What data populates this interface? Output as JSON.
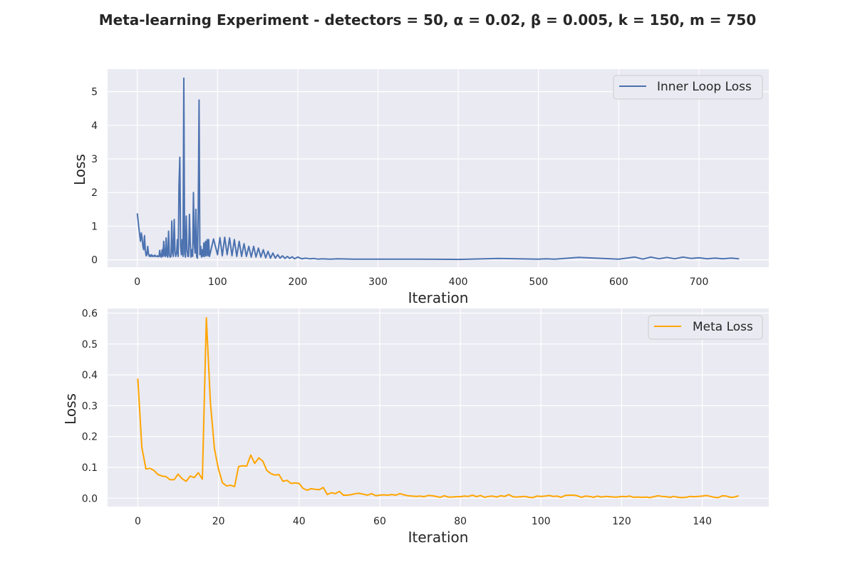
{
  "figure": {
    "title": "Meta-learning Experiment - detectors = 50, α = 0.02, β = 0.005, k = 150, m = 750"
  },
  "chart_data": [
    {
      "type": "line",
      "series": [
        {
          "name": "Inner Loop Loss",
          "color": "#4c72b0",
          "x": [
            0,
            2,
            3,
            4,
            5,
            6,
            7,
            8,
            9,
            10,
            11,
            12,
            13,
            14,
            15,
            16,
            17,
            18,
            19,
            20,
            21,
            22,
            23,
            24,
            25,
            26,
            27,
            28,
            29,
            30,
            31,
            32,
            33,
            34,
            35,
            36,
            37,
            38,
            39,
            40,
            41,
            42,
            43,
            44,
            45,
            46,
            47,
            48,
            49,
            50,
            51,
            52,
            53,
            54,
            55,
            56,
            57,
            58,
            59,
            60,
            61,
            62,
            63,
            64,
            65,
            66,
            67,
            68,
            69,
            70,
            71,
            72,
            73,
            74,
            75,
            76,
            77,
            78,
            79,
            80,
            81,
            82,
            83,
            84,
            85,
            86,
            87,
            88,
            89,
            90,
            95,
            100,
            103,
            106,
            109,
            112,
            115,
            118,
            121,
            124,
            127,
            130,
            133,
            136,
            139,
            142,
            145,
            148,
            151,
            154,
            157,
            160,
            163,
            166,
            169,
            172,
            175,
            178,
            181,
            184,
            187,
            190,
            193,
            196,
            200,
            205,
            210,
            215,
            220,
            225,
            230,
            240,
            250,
            270,
            300,
            320,
            350,
            400,
            450,
            500,
            510,
            520,
            550,
            600,
            620,
            630,
            640,
            650,
            660,
            670,
            680,
            690,
            700,
            710,
            720,
            730,
            740,
            750
          ],
          "y": [
            1.38,
            0.95,
            0.75,
            0.55,
            0.8,
            0.65,
            0.4,
            0.3,
            0.72,
            0.3,
            0.12,
            0.15,
            0.4,
            0.18,
            0.1,
            0.14,
            0.1,
            0.15,
            0.1,
            0.12,
            0.1,
            0.14,
            0.1,
            0.1,
            0.12,
            0.09,
            0.1,
            0.28,
            0.1,
            0.08,
            0.3,
            0.1,
            0.55,
            0.12,
            0.1,
            0.65,
            0.12,
            0.08,
            0.85,
            0.15,
            0.08,
            0.1,
            1.15,
            0.2,
            0.1,
            1.2,
            0.25,
            0.1,
            0.2,
            0.6,
            0.1,
            2.2,
            3.05,
            0.4,
            0.15,
            0.6,
            0.1,
            5.4,
            0.2,
            0.08,
            1.3,
            0.3,
            0.1,
            0.1,
            1.35,
            0.5,
            0.08,
            0.3,
            0.1,
            2.0,
            0.5,
            0.2,
            1.5,
            0.1,
            0.05,
            1.6,
            4.75,
            0.15,
            0.4,
            0.08,
            0.3,
            0.1,
            0.5,
            0.1,
            0.55,
            0.12,
            0.6,
            0.12,
            0.6,
            0.1,
            0.62,
            0.15,
            0.66,
            0.12,
            0.67,
            0.15,
            0.65,
            0.12,
            0.6,
            0.1,
            0.55,
            0.1,
            0.48,
            0.1,
            0.4,
            0.08,
            0.4,
            0.08,
            0.35,
            0.08,
            0.3,
            0.06,
            0.25,
            0.05,
            0.2,
            0.05,
            0.15,
            0.05,
            0.12,
            0.04,
            0.1,
            0.04,
            0.09,
            0.03,
            0.08,
            0.03,
            0.05,
            0.03,
            0.04,
            0.02,
            0.03,
            0.02,
            0.03,
            0.02,
            0.02,
            0.02,
            0.02,
            0.01,
            0.04,
            0.02,
            0.03,
            0.02,
            0.07,
            0.02,
            0.08,
            0.02,
            0.08,
            0.03,
            0.07,
            0.03,
            0.08,
            0.04,
            0.06,
            0.03,
            0.05,
            0.03,
            0.05,
            0.03
          ]
        }
      ],
      "xlabel": "Iteration",
      "ylabel": "Loss",
      "xlim": [
        -37,
        787
      ],
      "ylim": [
        -0.22,
        5.67
      ],
      "xticks": [
        0,
        100,
        200,
        300,
        400,
        500,
        600,
        700
      ],
      "yticks": [
        0,
        1,
        2,
        3,
        4,
        5
      ],
      "grid": true,
      "legend": "top-right"
    },
    {
      "type": "line",
      "series": [
        {
          "name": "Meta Loss",
          "color": "#ffa500",
          "x": [
            0,
            1,
            2,
            3,
            4,
            5,
            6,
            7,
            8,
            9,
            10,
            11,
            12,
            13,
            14,
            15,
            16,
            17,
            18,
            19,
            20,
            21,
            22,
            23,
            24,
            25,
            26,
            27,
            28,
            29,
            30,
            31,
            32,
            33,
            34,
            35,
            36,
            37,
            38,
            39,
            40,
            41,
            42,
            43,
            44,
            45,
            46,
            47,
            48,
            49,
            50,
            51,
            52,
            53,
            54,
            55,
            56,
            57,
            58,
            59,
            60,
            61,
            62,
            63,
            64,
            65,
            66,
            67,
            68,
            69,
            70,
            71,
            72,
            73,
            74,
            75,
            76,
            77,
            78,
            79,
            80,
            81,
            82,
            83,
            84,
            85,
            86,
            87,
            88,
            89,
            90,
            91,
            92,
            93,
            94,
            95,
            96,
            97,
            98,
            99,
            100,
            101,
            102,
            103,
            104,
            105,
            106,
            107,
            108,
            109,
            110,
            111,
            112,
            113,
            114,
            115,
            116,
            117,
            118,
            119,
            120,
            121,
            122,
            123,
            124,
            125,
            126,
            127,
            128,
            129,
            130,
            131,
            132,
            133,
            134,
            135,
            136,
            137,
            138,
            139,
            140,
            141,
            142,
            143,
            144,
            145,
            146,
            147,
            148,
            149
          ],
          "y": [
            0.388,
            0.165,
            0.095,
            0.097,
            0.09,
            0.077,
            0.072,
            0.07,
            0.06,
            0.06,
            0.078,
            0.063,
            0.055,
            0.072,
            0.067,
            0.083,
            0.062,
            0.585,
            0.31,
            0.16,
            0.095,
            0.05,
            0.04,
            0.042,
            0.038,
            0.103,
            0.105,
            0.104,
            0.14,
            0.113,
            0.131,
            0.12,
            0.09,
            0.08,
            0.075,
            0.077,
            0.055,
            0.058,
            0.048,
            0.05,
            0.048,
            0.032,
            0.026,
            0.031,
            0.029,
            0.028,
            0.035,
            0.012,
            0.018,
            0.015,
            0.022,
            0.01,
            0.01,
            0.012,
            0.015,
            0.016,
            0.013,
            0.01,
            0.015,
            0.008,
            0.01,
            0.011,
            0.01,
            0.012,
            0.01,
            0.015,
            0.011,
            0.008,
            0.007,
            0.006,
            0.007,
            0.005,
            0.009,
            0.008,
            0.006,
            0.003,
            0.008,
            0.004,
            0.004,
            0.005,
            0.005,
            0.007,
            0.006,
            0.01,
            0.005,
            0.009,
            0.003,
            0.006,
            0.007,
            0.004,
            0.008,
            0.006,
            0.012,
            0.005,
            0.004,
            0.005,
            0.006,
            0.003,
            0.002,
            0.007,
            0.006,
            0.007,
            0.009,
            0.006,
            0.007,
            0.003,
            0.009,
            0.01,
            0.01,
            0.008,
            0.003,
            0.007,
            0.006,
            0.003,
            0.007,
            0.004,
            0.006,
            0.005,
            0.004,
            0.004,
            0.006,
            0.005,
            0.007,
            0.003,
            0.004,
            0.003,
            0.004,
            0.002,
            0.005,
            0.008,
            0.006,
            0.005,
            0.003,
            0.006,
            0.003,
            0.002,
            0.003,
            0.006,
            0.005,
            0.006,
            0.007,
            0.009,
            0.006,
            0.003,
            0.002,
            0.008,
            0.007,
            0.003,
            0.004,
            0.008
          ]
        }
      ],
      "xlabel": "Iteration",
      "ylabel": "Loss",
      "xlim": [
        -7.5,
        156.5
      ],
      "ylim": [
        -0.027,
        0.615
      ],
      "xticks": [
        0,
        20,
        40,
        60,
        80,
        100,
        120,
        140
      ],
      "yticks": [
        0.0,
        0.1,
        0.2,
        0.3,
        0.4,
        0.5,
        0.6
      ],
      "ytick_format": "1dp",
      "grid": true,
      "legend": "top-right"
    }
  ]
}
